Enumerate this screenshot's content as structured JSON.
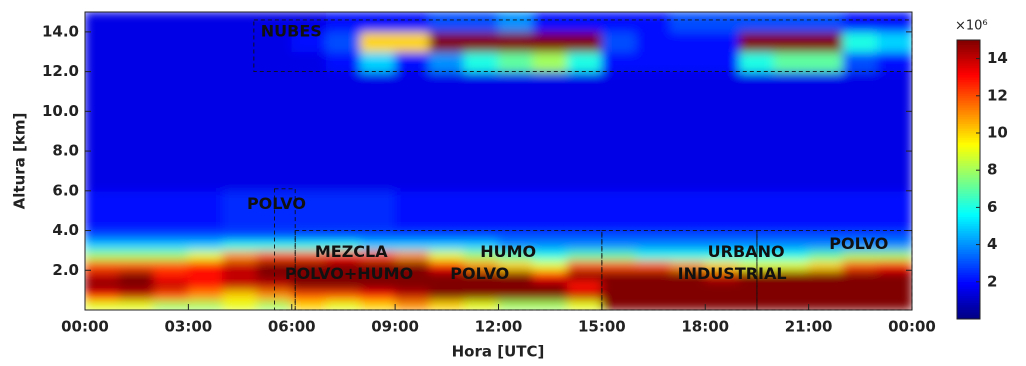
{
  "chart_data": {
    "type": "heatmap",
    "colormap": "jet",
    "xlabel": "Hora [UTC]",
    "ylabel": "Altura [km]",
    "colorbar_label": "×10⁶",
    "xlim": [
      0,
      24
    ],
    "xticks": [
      {
        "value": 0,
        "label": "00:00"
      },
      {
        "value": 3,
        "label": "03:00"
      },
      {
        "value": 6,
        "label": "06:00"
      },
      {
        "value": 9,
        "label": "09:00"
      },
      {
        "value": 12,
        "label": "12:00"
      },
      {
        "value": 15,
        "label": "15:00"
      },
      {
        "value": 18,
        "label": "18:00"
      },
      {
        "value": 21,
        "label": "21:00"
      },
      {
        "value": 24,
        "label": "00:00"
      }
    ],
    "ylim": [
      0,
      15
    ],
    "yticks": [
      {
        "value": 2,
        "label": "2.0"
      },
      {
        "value": 4,
        "label": "4.0"
      },
      {
        "value": 6,
        "label": "6.0"
      },
      {
        "value": 8,
        "label": "8.0"
      },
      {
        "value": 10,
        "label": "10.0"
      },
      {
        "value": 12,
        "label": "12.0"
      },
      {
        "value": 14,
        "label": "14.0"
      }
    ],
    "clim": [
      0,
      15
    ],
    "cticks": [
      2,
      4,
      6,
      8,
      10,
      12,
      14
    ],
    "x_bins": [
      0,
      1,
      2,
      3,
      4,
      5,
      6,
      7,
      8,
      9,
      10,
      11,
      12,
      13,
      14,
      15,
      16,
      17,
      18,
      19,
      20,
      21,
      22,
      23,
      24
    ],
    "y_bins": [
      0,
      0.5,
      1,
      1.5,
      2,
      2.5,
      3,
      3.5,
      4,
      6,
      8,
      10,
      12,
      13,
      14,
      15
    ],
    "z": [
      [
        9,
        9,
        8,
        8,
        9,
        8,
        10,
        9,
        10,
        11,
        10,
        9,
        8,
        8,
        9,
        15,
        15,
        15,
        15,
        15,
        15,
        15,
        15,
        15
      ],
      [
        13,
        14,
        12,
        11,
        10,
        11,
        12,
        12,
        13,
        14,
        15,
        15,
        15,
        15,
        14,
        15,
        15,
        15,
        15,
        15,
        15,
        15,
        15,
        15
      ],
      [
        15,
        15,
        14,
        13,
        14,
        14,
        15,
        15,
        15,
        15,
        15,
        15,
        15,
        15,
        13,
        15,
        15,
        15,
        15,
        15,
        15,
        15,
        15,
        15
      ],
      [
        14,
        15,
        13,
        13,
        14,
        15,
        15,
        15,
        15,
        15,
        15,
        15,
        15,
        13,
        15,
        15,
        15,
        15,
        14,
        15,
        15,
        15,
        15,
        15
      ],
      [
        12,
        12,
        12,
        13,
        14,
        15,
        15,
        15,
        15,
        15,
        13,
        11,
        10,
        9,
        12,
        12,
        12,
        11,
        10,
        9,
        9,
        10,
        12,
        13
      ],
      [
        8,
        8,
        8,
        9,
        11,
        12,
        12,
        13,
        12,
        11,
        9,
        8,
        7,
        6,
        7,
        7,
        6,
        6,
        6,
        6,
        6,
        7,
        8,
        8
      ],
      [
        5,
        5,
        5,
        5,
        6,
        6,
        6,
        6,
        5,
        5,
        5,
        5,
        4,
        4,
        4,
        4,
        4,
        4,
        4,
        4,
        4,
        4,
        4,
        4
      ],
      [
        3,
        3,
        3,
        3,
        3,
        3,
        3,
        3,
        3,
        3,
        3,
        3,
        3,
        3,
        3,
        3,
        3,
        3,
        3,
        3,
        3,
        3,
        3,
        3
      ],
      [
        2,
        2,
        2,
        2,
        2.5,
        2.5,
        2.5,
        2.5,
        2.5,
        2,
        2,
        2,
        2,
        2,
        2,
        2,
        2,
        2,
        2,
        2,
        2,
        2,
        2,
        2
      ],
      [
        1.5,
        1.5,
        1.5,
        1.5,
        1.5,
        1.5,
        1.5,
        1.5,
        1.5,
        1.5,
        1.5,
        1.5,
        1.5,
        1.5,
        1.5,
        1.5,
        1.5,
        1.5,
        1.5,
        1.5,
        1.5,
        1.5,
        1.5,
        1.5
      ],
      [
        1.5,
        1.5,
        1.5,
        1.5,
        1.5,
        1.5,
        1.5,
        1.5,
        1.5,
        1.5,
        1.5,
        1.5,
        1.5,
        1.5,
        1.5,
        1.5,
        1.5,
        1.5,
        1.5,
        1.5,
        1.5,
        1.5,
        1.5,
        1.5
      ],
      [
        1.5,
        1.5,
        1.5,
        1.5,
        1.5,
        1.5,
        1.5,
        1.5,
        1.5,
        1.5,
        1.5,
        1.5,
        1.5,
        1.5,
        1.5,
        1.5,
        1.5,
        1.5,
        1.5,
        1.5,
        1.5,
        1.5,
        1.5,
        1.5
      ],
      [
        1.5,
        1.5,
        1.5,
        1.5,
        1.5,
        1.5,
        1.5,
        2,
        5,
        2,
        4,
        6,
        7,
        8,
        6,
        2,
        2,
        2,
        2,
        6,
        7,
        7,
        3,
        2
      ],
      [
        1.5,
        1.5,
        1.5,
        1.5,
        1.5,
        1.5,
        2,
        3,
        10,
        10,
        15,
        15,
        15,
        15,
        15,
        3,
        2,
        2,
        2,
        15,
        15,
        15,
        6,
        5
      ],
      [
        1.5,
        1.5,
        1.5,
        1.5,
        1.5,
        1.5,
        1.5,
        2,
        2,
        2,
        3,
        3,
        4,
        2,
        2,
        2,
        2,
        3,
        3,
        3,
        3,
        3,
        2,
        2
      ]
    ],
    "annotations": [
      {
        "lines": [
          "NUBES"
        ],
        "at": [
          5.1,
          14
        ],
        "box": [
          4.9,
          24,
          12,
          14.6
        ]
      },
      {
        "lines": [
          "POLVO"
        ],
        "at": [
          4.7,
          5.3
        ]
      },
      {
        "lines": [
          "MEZCLA",
          "POLVO+HUMO"
        ],
        "at": [
          5.8,
          2.9
        ],
        "box": [
          5.5,
          6.1,
          0,
          6.1
        ]
      },
      {
        "lines": [
          "HUMO",
          "POLVO"
        ],
        "at": [
          10.6,
          2.9
        ],
        "box": [
          6.1,
          15,
          0,
          4
        ]
      },
      {
        "lines": [
          "URBANO",
          "INDUSTRIAL"
        ],
        "at": [
          17.2,
          2.9
        ],
        "box": [
          15,
          19.5,
          0,
          4
        ]
      },
      {
        "lines": [
          "POLVO"
        ],
        "at": [
          21.6,
          3.3
        ],
        "box": [
          19.5,
          24,
          0,
          4
        ]
      }
    ]
  }
}
